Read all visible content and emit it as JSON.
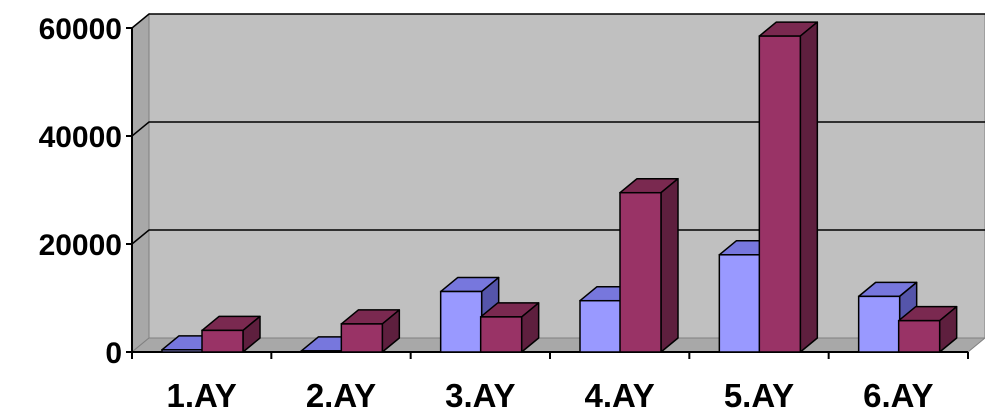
{
  "chart_data": {
    "type": "bar",
    "categories": [
      "1.AY",
      "2.AY",
      "3.AY",
      "4.AY",
      "5.AY",
      "6.AY"
    ],
    "series": [
      {
        "values": [
          400,
          200,
          11200,
          9500,
          18000,
          10300
        ]
      },
      {
        "values": [
          4000,
          5200,
          6500,
          29500,
          58500,
          5800
        ]
      }
    ],
    "yticks": [
      "0",
      "20000",
      "40000",
      "60000"
    ],
    "ylim": [
      0,
      60000
    ],
    "grid": true,
    "style": "3d-clustered-column",
    "colors": {
      "series1_front": "#9999ff",
      "series1_top": "#7777dd",
      "series1_side": "#5555aa",
      "series2_front": "#993366",
      "series2_top": "#7a2950",
      "series2_side": "#5e1f3e",
      "plot_back": "#c0c0c0",
      "plot_floor": "#a8a8a8"
    }
  }
}
